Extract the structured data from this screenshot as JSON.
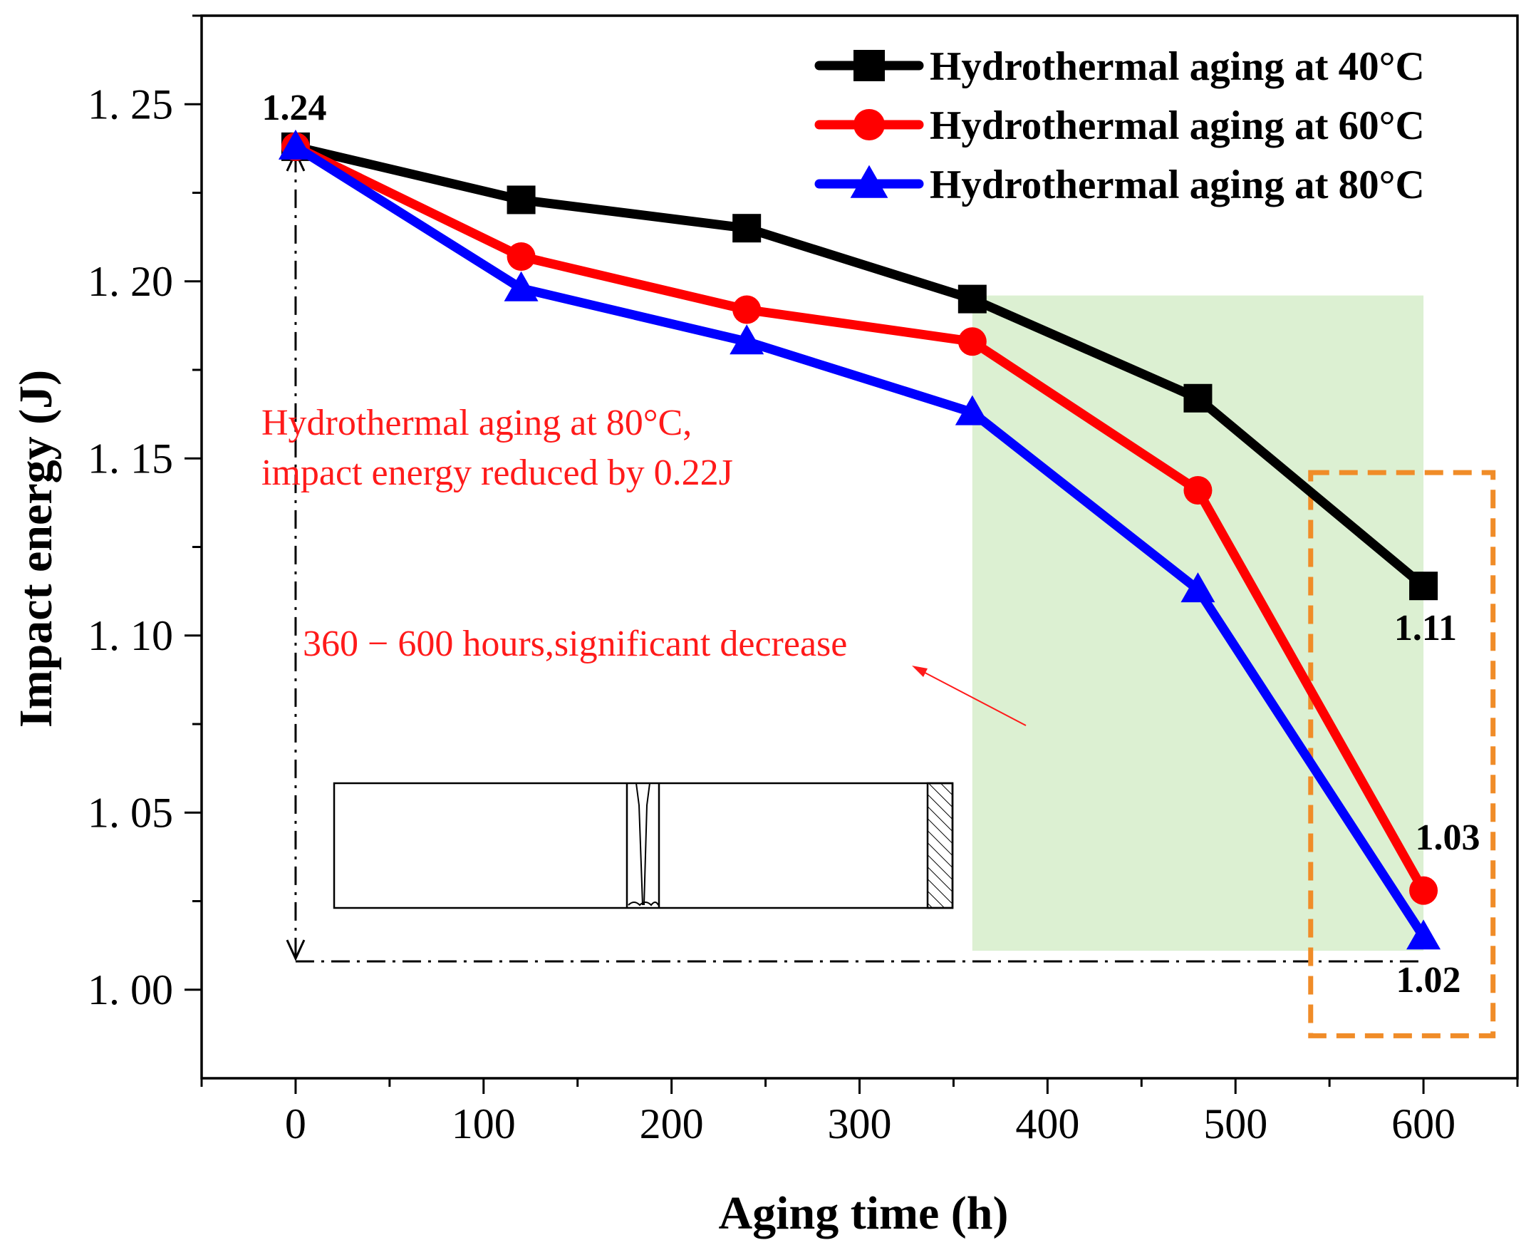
{
  "chart_data": {
    "type": "line",
    "title": "",
    "xlabel": "Aging time (h)",
    "ylabel": "Impact energy (J)",
    "xlim": [
      -50,
      650
    ],
    "ylim": [
      0.975,
      1.275
    ],
    "x_ticks": [
      0,
      100,
      200,
      300,
      400,
      500,
      600
    ],
    "x_tick_labels": [
      "0",
      "100",
      "200",
      "300",
      "400",
      "500",
      "600"
    ],
    "y_ticks": [
      1.0,
      1.05,
      1.1,
      1.15,
      1.2,
      1.25
    ],
    "y_tick_labels": [
      "1. 00",
      "1. 05",
      "1. 10",
      "1. 15",
      "1. 20",
      "1. 25"
    ],
    "grid": false,
    "legend_position": "top-right",
    "x": [
      0,
      120,
      240,
      360,
      480,
      600
    ],
    "series": [
      {
        "name": "Hydrothermal aging at 40°C",
        "color": "#000000",
        "marker": "square",
        "values": [
          1.238,
          1.223,
          1.215,
          1.195,
          1.167,
          1.114
        ]
      },
      {
        "name": "Hydrothermal aging at 60°C",
        "color": "#ff0000",
        "marker": "circle",
        "values": [
          1.238,
          1.207,
          1.192,
          1.183,
          1.141,
          1.028
        ]
      },
      {
        "name": "Hydrothermal aging at 80°C",
        "color": "#0000ff",
        "marker": "triangle",
        "values": [
          1.238,
          1.198,
          1.183,
          1.163,
          1.113,
          1.015
        ]
      }
    ],
    "data_labels": [
      {
        "text": "1.24",
        "x": 0,
        "y": 1.238,
        "anchor": "above"
      },
      {
        "text": "1.11",
        "x": 600,
        "y": 1.114,
        "anchor": "below"
      },
      {
        "text": "1.03",
        "x": 600,
        "y": 1.028,
        "anchor": "above"
      },
      {
        "text": "1.02",
        "x": 600,
        "y": 1.015,
        "anchor": "below"
      }
    ],
    "annotations": {
      "reduction_line1": "Hydrothermal aging  at 80°C,",
      "reduction_line2": "impact energy reduced by 0.22J",
      "decrease_note": "360 − 600 hours,significant decrease"
    },
    "highlight_region": {
      "x_from": 360,
      "x_to": 600,
      "y_from": 1.011,
      "y_to": 1.196,
      "color": "#dcf0d2"
    },
    "focus_box": {
      "x_from": 540,
      "x_to": 637,
      "y_from": 0.987,
      "y_to": 1.146,
      "color": "#f08c28"
    },
    "reference_lines": {
      "y_start": 1.238,
      "y_end": 1.008,
      "x_end": 600
    }
  }
}
